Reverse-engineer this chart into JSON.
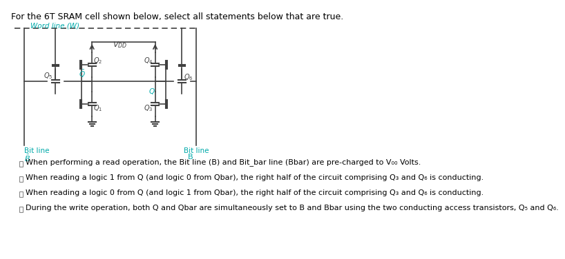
{
  "title": "For the 6T SRAM cell shown below, select all statements below that are true.",
  "title_color": "#000000",
  "title_fontsize": 9,
  "word_line_label": "Word line (W)",
  "word_line_color": "#00AAAA",
  "bit_line_left_label": "Bit line\nB̅",
  "bit_line_right_label": "Bit line\nB",
  "bit_line_color": "#00AAAA",
  "vdd_label": "V₀₀",
  "statements": [
    "When performing a read operation, the Bit line (B) and Bit_bar line (Bbar) are pre-charged to V₀₀ Volts.",
    "When reading a logic 1 from Q (and logic 0 from Qbar), the right half of the circuit comprising Q₃ and Q₆ is conducting.",
    "When reading a logic 0 from Q (and logic 1 from Qbar), the right half of the circuit comprising Q₃ and Q₆ is conducting.",
    "During the write operation, both Q and Qbar are simultaneously set to B and Bbar using the two conducting access transistors, Q₅ and Q₆."
  ],
  "statements_color": "#000000",
  "statements_fontsize": 8,
  "circuit_color": "#404040",
  "background": "#ffffff"
}
